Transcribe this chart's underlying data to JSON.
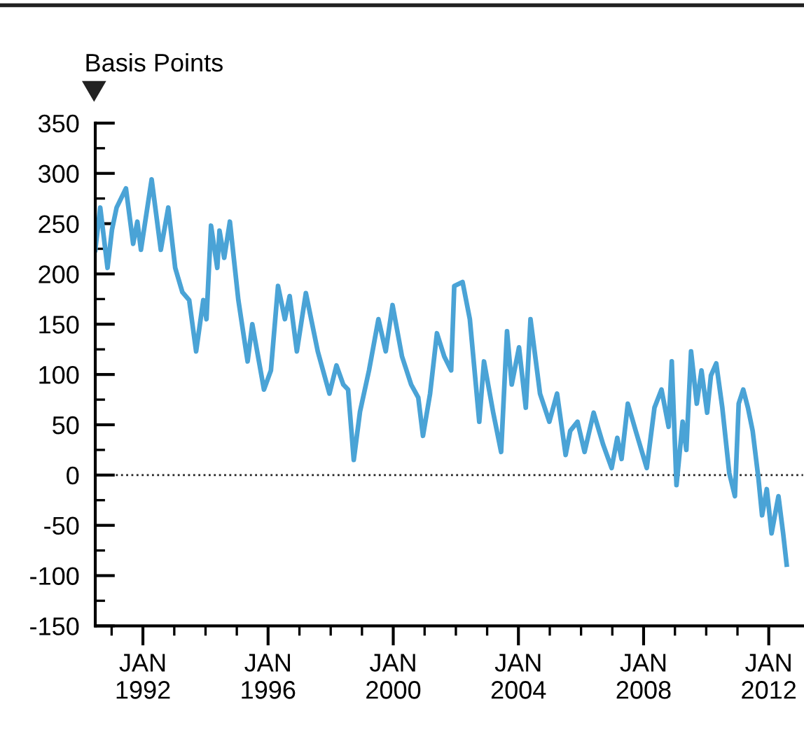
{
  "chart_data": {
    "type": "line",
    "ylabel": "Basis Points",
    "x": [
      "1990-06-24",
      "1990-08-21",
      "1990-11-14",
      "1991-01-05",
      "1991-02-28",
      "1991-06-17",
      "1991-09-09",
      "1991-10-28",
      "1991-12-09",
      "1992-04-12",
      "1992-07-28",
      "1992-10-23",
      "1993-01-12",
      "1993-04-05",
      "1993-06-24",
      "1993-09-13",
      "1993-12-06",
      "1994-01-12",
      "1994-03-06",
      "1994-05-18",
      "1994-06-13",
      "1994-08-07",
      "1994-10-12",
      "1995-01-19",
      "1995-05-07",
      "1995-07-01",
      "1995-11-14",
      "1996-02-03",
      "1996-04-26",
      "1996-07-15",
      "1996-09-09",
      "1996-12-02",
      "1997-03-17",
      "1997-08-03",
      "1997-12-17",
      "1998-03-09",
      "1998-05-28",
      "1998-07-23",
      "1998-09-27",
      "1998-12-09",
      "1999-03-24",
      "1999-07-12",
      "1999-10-05",
      "1999-12-24",
      "2000-04-12",
      "2000-07-28",
      "2000-10-19",
      "2000-12-13",
      "2001-03-06",
      "2001-05-25",
      "2001-08-18",
      "2001-11-07",
      "2001-12-13",
      "2002-03-20",
      "2002-06-13",
      "2002-10-01",
      "2002-11-25",
      "2003-03-13",
      "2003-06-13",
      "2003-08-21",
      "2003-10-15",
      "2004-01-08",
      "2004-03-27",
      "2004-05-21",
      "2004-09-09",
      "2004-12-27",
      "2005-03-27",
      "2005-07-05",
      "2005-08-28",
      "2005-11-21",
      "2006-02-11",
      "2006-05-28",
      "2006-09-17",
      "2006-12-24",
      "2007-02-28",
      "2007-04-19",
      "2007-07-01",
      "2007-10-01",
      "2008-02-07",
      "2008-05-07",
      "2008-07-28",
      "2008-10-19",
      "2008-11-25",
      "2009-01-19",
      "2009-04-01",
      "2009-05-14",
      "2009-07-08",
      "2009-09-13",
      "2009-11-07",
      "2010-01-12",
      "2010-02-25",
      "2010-04-28",
      "2010-07-08",
      "2010-09-27",
      "2010-12-02",
      "2011-01-15",
      "2011-03-09",
      "2011-05-03",
      "2011-06-27",
      "2011-09-02",
      "2011-10-15",
      "2011-12-09",
      "2012-02-03",
      "2012-04-23",
      "2012-06-17",
      "2012-07-28"
    ],
    "series": [
      {
        "color": "#4aa3d6",
        "values": [
          224,
          266,
          206,
          244,
          266,
          285,
          230,
          252,
          224,
          294,
          224,
          266,
          206,
          182,
          174,
          123,
          174,
          155,
          248,
          206,
          243,
          216,
          252,
          174,
          113,
          150,
          85,
          104,
          188,
          155,
          178,
          123,
          181,
          123,
          81,
          109,
          90,
          85,
          15,
          63,
          104,
          155,
          123,
          169,
          118,
          90,
          77,
          39,
          81,
          141,
          118,
          104,
          188,
          192,
          155,
          53,
          113,
          62,
          23,
          143,
          90,
          127,
          67,
          155,
          81,
          53,
          81,
          20,
          44,
          53,
          23,
          62,
          30,
          7,
          37,
          16,
          71,
          44,
          7,
          67,
          85,
          48,
          113,
          -10,
          53,
          25,
          123,
          71,
          104,
          62,
          99,
          111,
          67,
          2,
          -21,
          71,
          85,
          67,
          44,
          -3,
          -40,
          -14,
          -58,
          -21,
          -58,
          -89
        ]
      }
    ],
    "xlim": [
      "1990-06-24",
      "2013-02-06"
    ],
    "xticks": [
      {
        "value": "1991-01-01",
        "label": null
      },
      {
        "value": "1992-01-01",
        "label": "JAN\n1992"
      },
      {
        "value": "1993-01-01",
        "label": null
      },
      {
        "value": "1994-01-01",
        "label": null
      },
      {
        "value": "1995-01-01",
        "label": null
      },
      {
        "value": "1996-01-01",
        "label": "JAN\n1996"
      },
      {
        "value": "1997-01-01",
        "label": null
      },
      {
        "value": "1998-01-01",
        "label": null
      },
      {
        "value": "1999-01-01",
        "label": null
      },
      {
        "value": "2000-01-01",
        "label": "JAN\n2000"
      },
      {
        "value": "2001-01-01",
        "label": null
      },
      {
        "value": "2002-01-01",
        "label": null
      },
      {
        "value": "2003-01-01",
        "label": null
      },
      {
        "value": "2004-01-01",
        "label": "JAN\n2004"
      },
      {
        "value": "2005-01-01",
        "label": null
      },
      {
        "value": "2006-01-01",
        "label": null
      },
      {
        "value": "2007-01-01",
        "label": null
      },
      {
        "value": "2008-01-01",
        "label": "JAN\n2008"
      },
      {
        "value": "2009-01-01",
        "label": null
      },
      {
        "value": "2010-01-01",
        "label": null
      },
      {
        "value": "2011-01-01",
        "label": null
      },
      {
        "value": "2012-01-01",
        "label": "JAN\n2012"
      }
    ],
    "ylim": [
      -150,
      350
    ],
    "yticks": [
      -150,
      {
        "value": -125,
        "label": null
      },
      -100,
      {
        "value": -75,
        "label": null
      },
      -50,
      {
        "value": -25,
        "label": null
      },
      0,
      {
        "value": 25,
        "label": null
      },
      50,
      {
        "value": 75,
        "label": null
      },
      100,
      {
        "value": 125,
        "label": null
      },
      150,
      {
        "value": 175,
        "label": null
      },
      200,
      {
        "value": 225,
        "label": null
      },
      250,
      {
        "value": 275,
        "label": null
      },
      300,
      {
        "value": 325,
        "label": null
      },
      350
    ],
    "ref_lines": [
      {
        "axis": "y",
        "value": 0,
        "color": "#222222",
        "line_style": "dotted"
      }
    ],
    "line_style": "solid",
    "marker": "none"
  }
}
